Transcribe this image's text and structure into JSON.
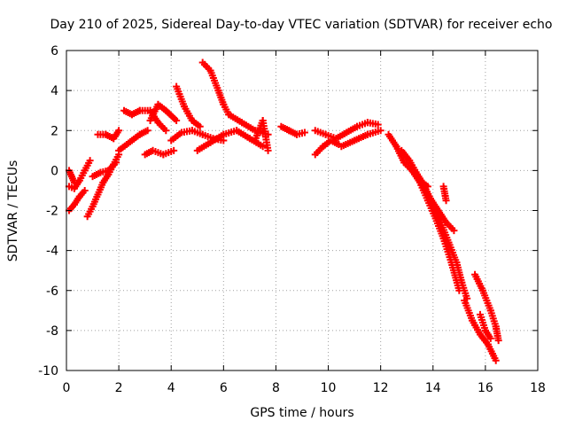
{
  "chart_data": {
    "type": "scatter",
    "title": "Day 210 of 2025, Sidereal Day-to-day VTEC variation (SDTVAR) for receiver echo",
    "xlabel": "GPS time / hours",
    "ylabel": "SDTVAR / TECUs",
    "xlim": [
      0,
      18
    ],
    "ylim": [
      -10,
      6
    ],
    "xticks": [
      0,
      2,
      4,
      6,
      8,
      10,
      12,
      14,
      16,
      18
    ],
    "yticks": [
      -10,
      -8,
      -6,
      -4,
      -2,
      0,
      2,
      4,
      6
    ],
    "grid": true,
    "marker": "+",
    "color": "#ff0000",
    "series": [
      {
        "name": "SDTVAR",
        "tracks": [
          [
            [
              0.1,
              -0.8
            ],
            [
              0.3,
              -0.9
            ],
            [
              0.5,
              -0.5
            ],
            [
              0.7,
              0.0
            ],
            [
              0.9,
              0.5
            ]
          ],
          [
            [
              0.1,
              -2.0
            ],
            [
              0.3,
              -1.7
            ],
            [
              0.5,
              -1.3
            ],
            [
              0.7,
              -1.0
            ]
          ],
          [
            [
              0.1,
              0.0
            ],
            [
              0.2,
              -0.3
            ],
            [
              0.3,
              -0.6
            ]
          ],
          [
            [
              0.8,
              -2.3
            ],
            [
              1.0,
              -1.8
            ],
            [
              1.2,
              -1.2
            ],
            [
              1.4,
              -0.6
            ],
            [
              1.6,
              -0.2
            ],
            [
              1.8,
              0.3
            ],
            [
              2.0,
              0.8
            ]
          ],
          [
            [
              1.0,
              -0.3
            ],
            [
              1.3,
              -0.1
            ],
            [
              1.6,
              0.0
            ],
            [
              1.9,
              0.4
            ]
          ],
          [
            [
              1.2,
              1.8
            ],
            [
              1.5,
              1.8
            ],
            [
              1.8,
              1.6
            ],
            [
              2.0,
              2.0
            ]
          ],
          [
            [
              2.0,
              1.0
            ],
            [
              2.3,
              1.3
            ],
            [
              2.5,
              1.5
            ],
            [
              2.8,
              1.8
            ],
            [
              3.1,
              2.0
            ]
          ],
          [
            [
              2.2,
              3.0
            ],
            [
              2.5,
              2.8
            ],
            [
              2.8,
              3.0
            ],
            [
              3.2,
              3.0
            ],
            [
              3.5,
              2.4
            ],
            [
              3.8,
              2.0
            ]
          ],
          [
            [
              3.0,
              0.8
            ],
            [
              3.3,
              1.0
            ],
            [
              3.7,
              0.8
            ],
            [
              4.1,
              1.0
            ]
          ],
          [
            [
              3.2,
              2.5
            ],
            [
              3.5,
              3.3
            ],
            [
              3.8,
              3.0
            ],
            [
              4.2,
              2.5
            ]
          ],
          [
            [
              4.2,
              4.2
            ],
            [
              4.5,
              3.2
            ],
            [
              4.8,
              2.5
            ],
            [
              5.1,
              2.2
            ]
          ],
          [
            [
              4.0,
              1.5
            ],
            [
              4.4,
              1.9
            ],
            [
              4.8,
              2.0
            ],
            [
              5.2,
              1.8
            ],
            [
              5.6,
              1.6
            ],
            [
              6.0,
              1.5
            ]
          ],
          [
            [
              5.2,
              5.4
            ],
            [
              5.5,
              5.0
            ],
            [
              5.8,
              4.0
            ],
            [
              6.0,
              3.3
            ],
            [
              6.2,
              2.8
            ]
          ],
          [
            [
              5.0,
              1.0
            ],
            [
              5.5,
              1.4
            ],
            [
              6.0,
              1.8
            ],
            [
              6.5,
              2.0
            ],
            [
              7.0,
              1.6
            ],
            [
              7.5,
              1.2
            ]
          ],
          [
            [
              6.2,
              2.8
            ],
            [
              6.7,
              2.4
            ],
            [
              7.2,
              2.0
            ],
            [
              7.7,
              1.8
            ]
          ],
          [
            [
              7.2,
              1.5
            ],
            [
              7.5,
              2.5
            ],
            [
              7.7,
              1.0
            ]
          ],
          [
            [
              8.2,
              2.2
            ],
            [
              8.5,
              2.0
            ],
            [
              8.8,
              1.8
            ],
            [
              9.1,
              1.9
            ]
          ],
          [
            [
              9.5,
              0.8
            ],
            [
              9.8,
              1.2
            ],
            [
              10.1,
              1.5
            ],
            [
              10.4,
              1.3
            ]
          ],
          [
            [
              9.5,
              2.0
            ],
            [
              9.9,
              1.8
            ],
            [
              10.3,
              1.6
            ],
            [
              10.7,
              1.9
            ],
            [
              11.1,
              2.2
            ],
            [
              11.5,
              2.4
            ],
            [
              11.9,
              2.3
            ]
          ],
          [
            [
              10.5,
              1.2
            ],
            [
              11.0,
              1.5
            ],
            [
              11.5,
              1.8
            ],
            [
              12.0,
              2.0
            ]
          ],
          [
            [
              12.3,
              1.8
            ],
            [
              12.6,
              1.2
            ],
            [
              12.9,
              0.4
            ],
            [
              13.2,
              0.0
            ],
            [
              13.5,
              -0.6
            ],
            [
              13.8,
              -1.5
            ],
            [
              14.1,
              -2.4
            ],
            [
              14.4,
              -3.4
            ],
            [
              14.7,
              -4.6
            ],
            [
              15.0,
              -6.0
            ]
          ],
          [
            [
              12.8,
              1.0
            ],
            [
              13.1,
              0.5
            ],
            [
              13.4,
              -0.2
            ],
            [
              13.7,
              -1.0
            ],
            [
              14.0,
              -1.8
            ],
            [
              14.3,
              -2.6
            ],
            [
              14.6,
              -3.6
            ],
            [
              14.9,
              -4.6
            ],
            [
              15.1,
              -5.6
            ],
            [
              15.3,
              -6.4
            ]
          ],
          [
            [
              13.3,
              0.0
            ],
            [
              13.6,
              -0.6
            ],
            [
              13.9,
              -1.4
            ],
            [
              14.2,
              -2.0
            ],
            [
              14.5,
              -2.6
            ],
            [
              14.8,
              -3.0
            ]
          ],
          [
            [
              13.5,
              -0.5
            ],
            [
              13.8,
              -0.8
            ]
          ],
          [
            [
              14.4,
              -0.8
            ],
            [
              14.5,
              -1.5
            ]
          ],
          [
            [
              15.2,
              -6.5
            ],
            [
              15.5,
              -7.5
            ],
            [
              15.8,
              -8.2
            ],
            [
              16.1,
              -8.7
            ],
            [
              16.4,
              -9.5
            ]
          ],
          [
            [
              15.6,
              -5.2
            ],
            [
              15.9,
              -6.0
            ],
            [
              16.2,
              -7.0
            ],
            [
              16.4,
              -7.8
            ],
            [
              16.5,
              -8.5
            ]
          ],
          [
            [
              15.8,
              -7.2
            ],
            [
              16.0,
              -8.0
            ],
            [
              16.2,
              -8.4
            ]
          ]
        ]
      }
    ]
  }
}
